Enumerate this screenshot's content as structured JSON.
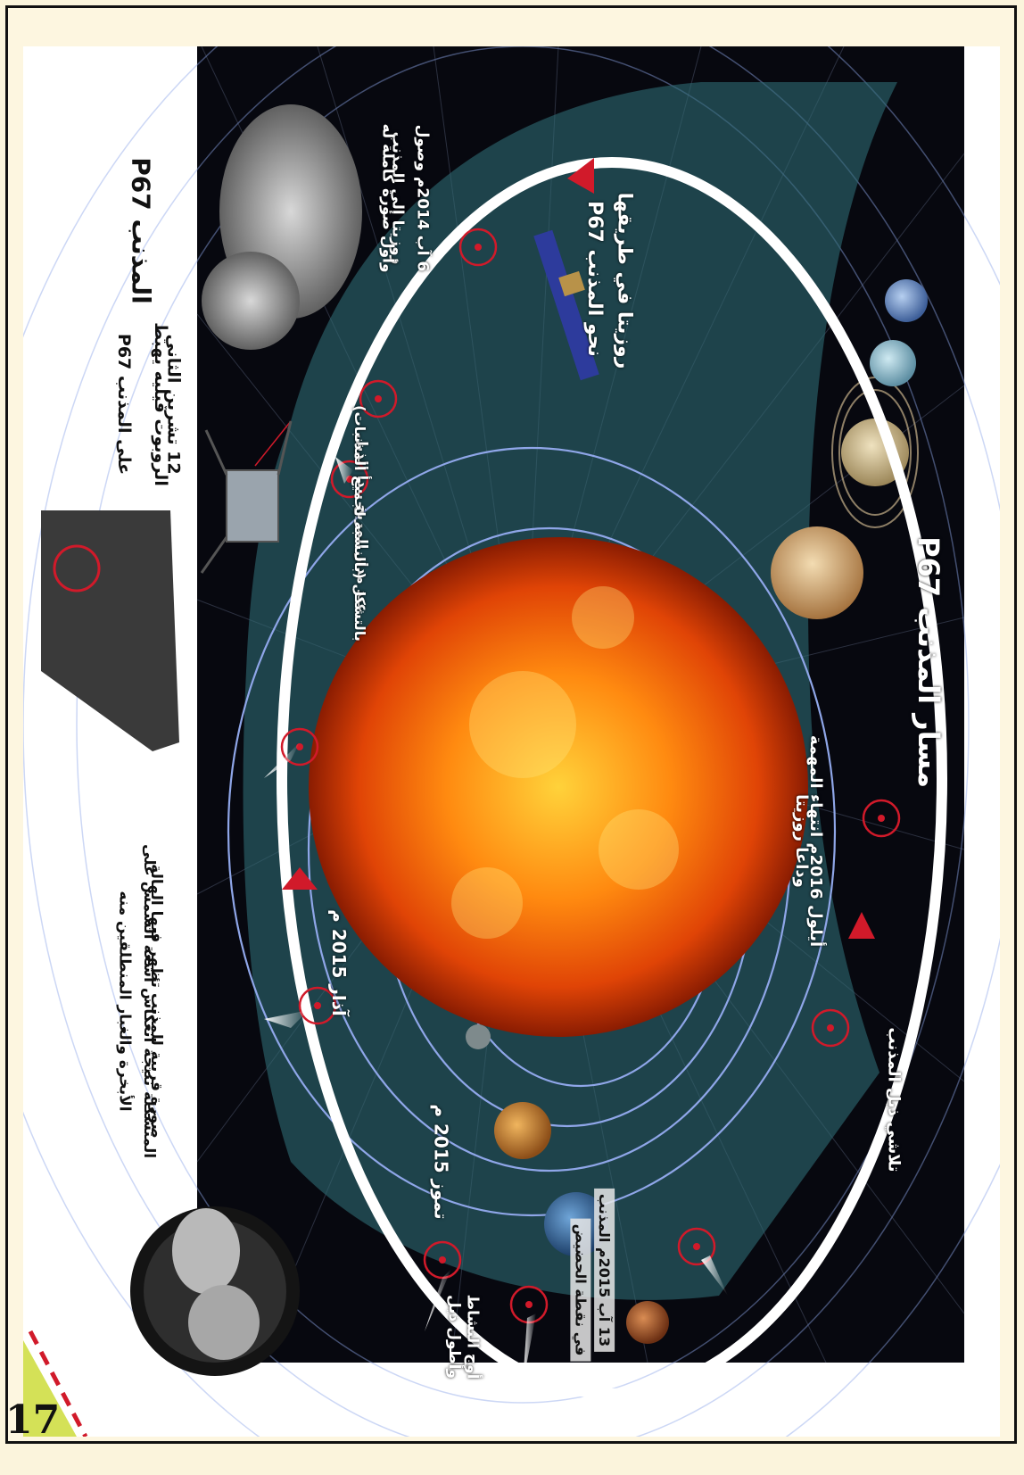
{
  "title": "مسار المذنب P67",
  "labels": {
    "rosetta_on_way": "روزيتا في طريقها",
    "rosetta_on_way_2": "نحو المذنب P67",
    "mission_end_1": "أيلول 2016م انتهاء المهمة",
    "mission_end_2": "وداعا روزيتا",
    "tail_fading": "تلاشي ذيل المذنب",
    "perihelion_1": "13 آب 2015م المذنب",
    "perihelion_2": "في نقطة الحضيض",
    "peak_activity_1": "أوج النشاط",
    "peak_activity_2": "وأطول ذيل",
    "june_2015": "تموز 2015 م",
    "march_2015": "آذار 2015 م",
    "orbit_note_1": "عند مدار المريخ يبدأ الذيل",
    "orbit_note_2": "بالتشكل (بالنسبة لجميع المذنبات)",
    "arrival_1": "6 آب 2014م وصول",
    "arrival_2": "روزيتا إلى المذنب",
    "arrival_3": "وأول صورة كاملة له",
    "comet_name": "المذنب P67",
    "landing_1": "12 تشرين الثاني",
    "landing_2": "الروبوت فيليه يهبط",
    "landing_3": "على المذنب P67",
    "closeup_1": "صورة قريبة للمذنب تظهر فيها الهالة",
    "closeup_2": "المتشكلة نتيجة انعكاس أشعة الشمس على",
    "closeup_3": "الأبخرة والغبار المنطلقين منه"
  },
  "page_number": "17",
  "colors": {
    "space": "#07080f",
    "orbit": "#ffffff",
    "marker": "#d11a2a",
    "planet_orbit": "#8fa6e8",
    "band": "#2e6b73"
  }
}
